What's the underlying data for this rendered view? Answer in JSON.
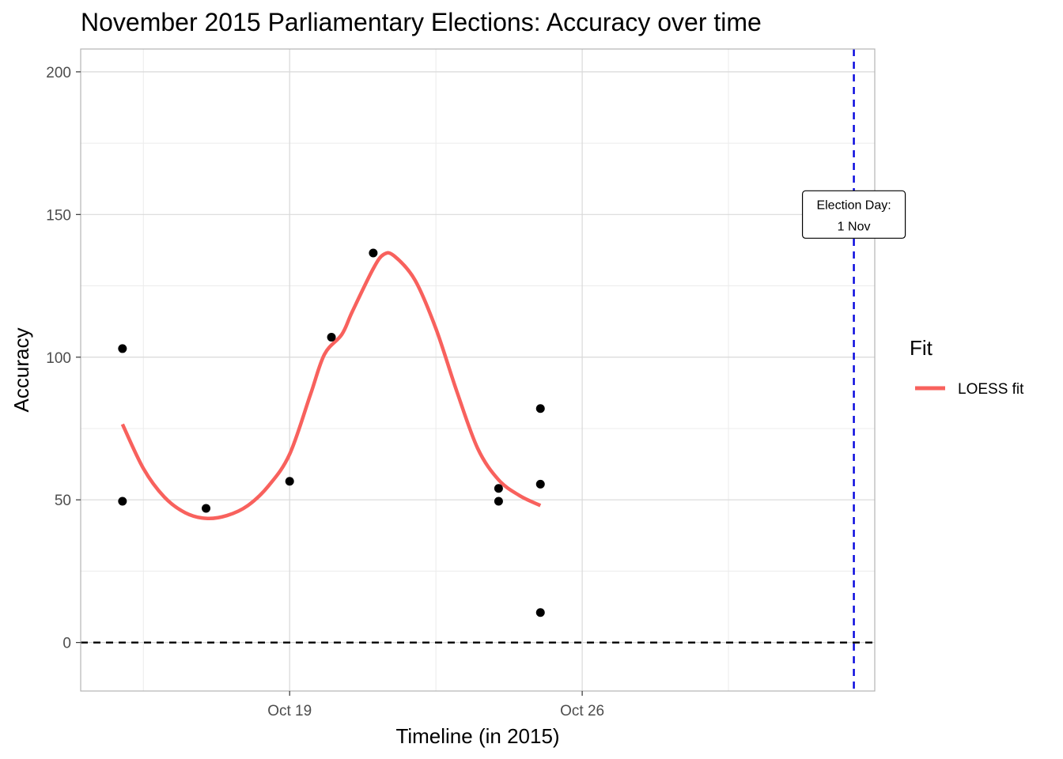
{
  "chart_data": {
    "type": "scatter",
    "title": "November 2015 Parliamentary Elections: Accuracy over time",
    "xlabel": "Timeline (in 2015)",
    "ylabel": "Accuracy",
    "xlim": [
      "2015-10-14",
      "2015-11-02"
    ],
    "ylim": [
      -17,
      208
    ],
    "x_ticks": [
      {
        "date": "2015-10-19",
        "label": "Oct 19"
      },
      {
        "date": "2015-10-26",
        "label": "Oct 26"
      }
    ],
    "x_minor_gridlines": [
      "2015-10-15T12:00",
      "2015-10-22T12:00",
      "2015-10-29T12:00"
    ],
    "y_ticks": [
      0,
      50,
      100,
      150,
      200
    ],
    "y_minor_gridlines": [
      25,
      75,
      125,
      175
    ],
    "grid": true,
    "points": [
      {
        "x": "2015-10-15",
        "y": 103
      },
      {
        "x": "2015-10-15",
        "y": 49.5
      },
      {
        "x": "2015-10-17",
        "y": 47
      },
      {
        "x": "2015-10-19",
        "y": 56.5
      },
      {
        "x": "2015-10-20",
        "y": 107
      },
      {
        "x": "2015-10-21",
        "y": 136.5
      },
      {
        "x": "2015-10-24",
        "y": 54
      },
      {
        "x": "2015-10-24",
        "y": 49.5
      },
      {
        "x": "2015-10-25",
        "y": 82
      },
      {
        "x": "2015-10-25",
        "y": 55.5
      },
      {
        "x": "2015-10-25",
        "y": 10.5
      }
    ],
    "series": [
      {
        "name": "LOESS fit",
        "color": "#f8615d",
        "points": [
          {
            "x": "2015-10-15T00:00",
            "y": 76.5
          },
          {
            "x": "2015-10-15T12:00",
            "y": 61
          },
          {
            "x": "2015-10-16T00:00",
            "y": 51
          },
          {
            "x": "2015-10-16T12:00",
            "y": 45.5
          },
          {
            "x": "2015-10-17T00:00",
            "y": 43.5
          },
          {
            "x": "2015-10-17T12:00",
            "y": 44.5
          },
          {
            "x": "2015-10-18T00:00",
            "y": 48
          },
          {
            "x": "2015-10-18T12:00",
            "y": 55
          },
          {
            "x": "2015-10-19T00:00",
            "y": 66
          },
          {
            "x": "2015-10-19T12:00",
            "y": 87
          },
          {
            "x": "2015-10-19T20:00",
            "y": 101
          },
          {
            "x": "2015-10-20T06:00",
            "y": 108
          },
          {
            "x": "2015-10-20T12:00",
            "y": 116
          },
          {
            "x": "2015-10-21T00:00",
            "y": 131
          },
          {
            "x": "2015-10-21T06:00",
            "y": 136
          },
          {
            "x": "2015-10-21T12:00",
            "y": 135.5
          },
          {
            "x": "2015-10-22T00:00",
            "y": 127
          },
          {
            "x": "2015-10-22T12:00",
            "y": 110
          },
          {
            "x": "2015-10-23T00:00",
            "y": 88
          },
          {
            "x": "2015-10-23T12:00",
            "y": 68
          },
          {
            "x": "2015-10-24T00:00",
            "y": 57
          },
          {
            "x": "2015-10-24T12:00",
            "y": 51.5
          },
          {
            "x": "2015-10-25T00:00",
            "y": 48
          }
        ]
      }
    ],
    "reference_lines": [
      {
        "axis": "y",
        "value": 0,
        "style": "dashed",
        "color": "#000000"
      },
      {
        "axis": "x",
        "value": "2015-11-01T12:00",
        "style": "dashed",
        "color": "#0000dd"
      }
    ],
    "annotation": {
      "x": "2015-11-01T12:00",
      "y": 150,
      "lines": [
        "Election Day:",
        "1 Nov"
      ]
    },
    "legend": {
      "title": "Fit",
      "position": "right",
      "entries": [
        {
          "label": "LOESS fit",
          "color": "#f8615d"
        }
      ]
    }
  }
}
